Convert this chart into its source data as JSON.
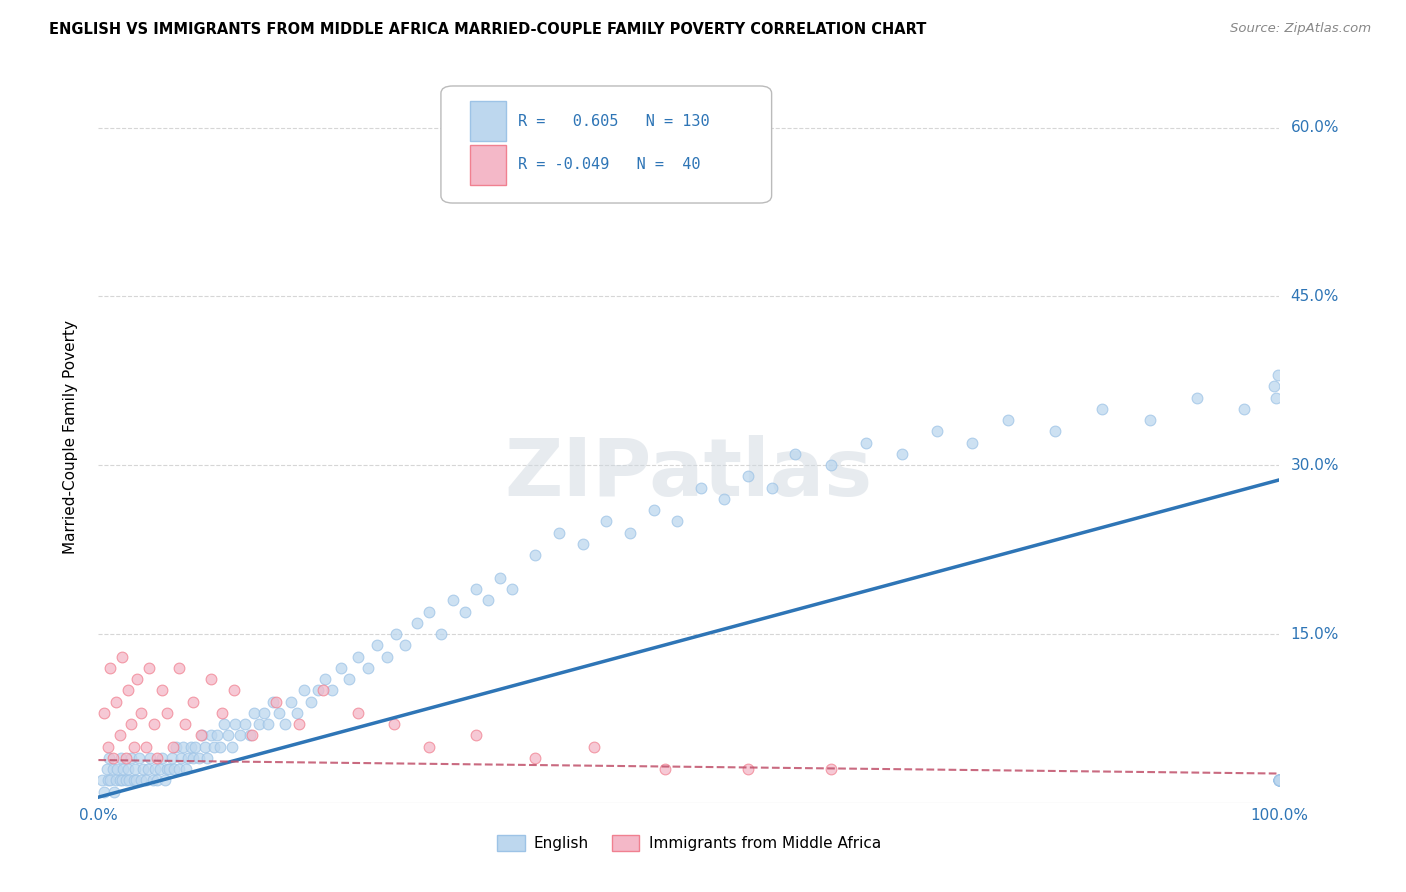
{
  "title": "ENGLISH VS IMMIGRANTS FROM MIDDLE AFRICA MARRIED-COUPLE FAMILY POVERTY CORRELATION CHART",
  "source": "Source: ZipAtlas.com",
  "ylabel": "Married-Couple Family Poverty",
  "legend_label1": "English",
  "legend_label2": "Immigrants from Middle Africa",
  "r1": "0.605",
  "n1": "130",
  "r2": "-0.049",
  "n2": "40",
  "watermark": "ZIPatlas",
  "blue_fill": "#bdd7ee",
  "blue_edge": "#9dc3e6",
  "blue_line": "#2e75b6",
  "pink_fill": "#f4b8c8",
  "pink_edge": "#f08090",
  "pink_line": "#c0506a",
  "xlim": [
    0.0,
    1.0
  ],
  "ylim": [
    0.0,
    0.65
  ],
  "yticks": [
    0.0,
    0.15,
    0.3,
    0.45,
    0.6
  ],
  "ytick_labels": [
    "",
    "15.0%",
    "30.0%",
    "45.0%",
    "60.0%"
  ],
  "xtick_labels": [
    "0.0%",
    "100.0%"
  ],
  "grid_color": "#cccccc",
  "background_color": "#ffffff",
  "eng_x": [
    0.003,
    0.005,
    0.007,
    0.008,
    0.009,
    0.01,
    0.012,
    0.013,
    0.015,
    0.016,
    0.018,
    0.019,
    0.02,
    0.021,
    0.023,
    0.025,
    0.026,
    0.028,
    0.03,
    0.031,
    0.032,
    0.034,
    0.036,
    0.038,
    0.04,
    0.042,
    0.044,
    0.046,
    0.048,
    0.05,
    0.052,
    0.054,
    0.056,
    0.058,
    0.06,
    0.062,
    0.064,
    0.066,
    0.068,
    0.07,
    0.072,
    0.074,
    0.076,
    0.078,
    0.08,
    0.082,
    0.085,
    0.088,
    0.09,
    0.092,
    0.095,
    0.098,
    0.1,
    0.103,
    0.106,
    0.11,
    0.113,
    0.116,
    0.12,
    0.124,
    0.128,
    0.132,
    0.136,
    0.14,
    0.144,
    0.148,
    0.153,
    0.158,
    0.163,
    0.168,
    0.174,
    0.18,
    0.186,
    0.192,
    0.198,
    0.205,
    0.212,
    0.22,
    0.228,
    0.236,
    0.244,
    0.252,
    0.26,
    0.27,
    0.28,
    0.29,
    0.3,
    0.31,
    0.32,
    0.33,
    0.34,
    0.35,
    0.37,
    0.39,
    0.41,
    0.43,
    0.45,
    0.47,
    0.49,
    0.51,
    0.53,
    0.55,
    0.57,
    0.59,
    0.62,
    0.65,
    0.68,
    0.71,
    0.74,
    0.77,
    0.81,
    0.85,
    0.89,
    0.93,
    0.97,
    0.995,
    0.997,
    0.999,
    1.0,
    1.0,
    1.0,
    1.0,
    1.0,
    1.0,
    1.0,
    1.0,
    1.0,
    1.0,
    1.0,
    1.0
  ],
  "eng_y": [
    0.02,
    0.01,
    0.03,
    0.02,
    0.04,
    0.02,
    0.03,
    0.01,
    0.02,
    0.03,
    0.02,
    0.04,
    0.02,
    0.03,
    0.02,
    0.03,
    0.02,
    0.04,
    0.02,
    0.03,
    0.02,
    0.04,
    0.02,
    0.03,
    0.02,
    0.03,
    0.04,
    0.02,
    0.03,
    0.02,
    0.03,
    0.04,
    0.02,
    0.03,
    0.03,
    0.04,
    0.03,
    0.05,
    0.03,
    0.04,
    0.05,
    0.03,
    0.04,
    0.05,
    0.04,
    0.05,
    0.04,
    0.06,
    0.05,
    0.04,
    0.06,
    0.05,
    0.06,
    0.05,
    0.07,
    0.06,
    0.05,
    0.07,
    0.06,
    0.07,
    0.06,
    0.08,
    0.07,
    0.08,
    0.07,
    0.09,
    0.08,
    0.07,
    0.09,
    0.08,
    0.1,
    0.09,
    0.1,
    0.11,
    0.1,
    0.12,
    0.11,
    0.13,
    0.12,
    0.14,
    0.13,
    0.15,
    0.14,
    0.16,
    0.17,
    0.15,
    0.18,
    0.17,
    0.19,
    0.18,
    0.2,
    0.19,
    0.22,
    0.24,
    0.23,
    0.25,
    0.24,
    0.26,
    0.25,
    0.28,
    0.27,
    0.29,
    0.28,
    0.31,
    0.3,
    0.32,
    0.31,
    0.33,
    0.32,
    0.34,
    0.33,
    0.35,
    0.34,
    0.36,
    0.35,
    0.37,
    0.36,
    0.38,
    0.02,
    0.02,
    0.02,
    0.02,
    0.02,
    0.02,
    0.02,
    0.02,
    0.02,
    0.02,
    0.02,
    0.02
  ],
  "imm_x": [
    0.005,
    0.008,
    0.01,
    0.012,
    0.015,
    0.018,
    0.02,
    0.023,
    0.025,
    0.028,
    0.03,
    0.033,
    0.036,
    0.04,
    0.043,
    0.047,
    0.05,
    0.054,
    0.058,
    0.063,
    0.068,
    0.073,
    0.08,
    0.087,
    0.095,
    0.105,
    0.115,
    0.13,
    0.15,
    0.17,
    0.19,
    0.22,
    0.25,
    0.28,
    0.32,
    0.37,
    0.42,
    0.48,
    0.55,
    0.62
  ],
  "imm_y": [
    0.08,
    0.05,
    0.12,
    0.04,
    0.09,
    0.06,
    0.13,
    0.04,
    0.1,
    0.07,
    0.05,
    0.11,
    0.08,
    0.05,
    0.12,
    0.07,
    0.04,
    0.1,
    0.08,
    0.05,
    0.12,
    0.07,
    0.09,
    0.06,
    0.11,
    0.08,
    0.1,
    0.06,
    0.09,
    0.07,
    0.1,
    0.08,
    0.07,
    0.05,
    0.06,
    0.04,
    0.05,
    0.03,
    0.03,
    0.03
  ]
}
